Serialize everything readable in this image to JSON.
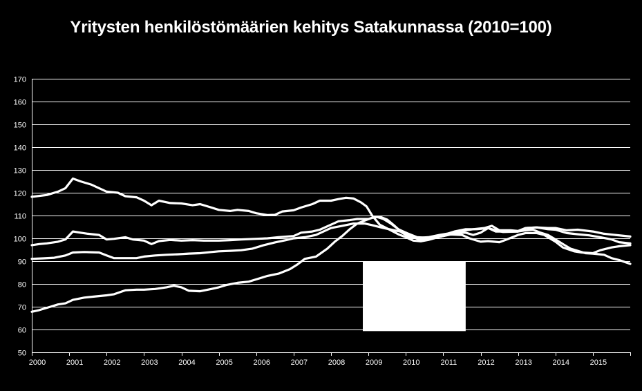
{
  "chart_data": {
    "type": "line",
    "title": "Yritysten henkilöstömäärien kehitys Satakunnassa (2010=100)",
    "xlabel": "",
    "ylabel": "",
    "ylim": [
      50,
      170
    ],
    "ytick_step": 10,
    "xlim": [
      2000,
      2016
    ],
    "x_tick_labels": [
      "2000",
      "2001",
      "2002",
      "2003",
      "2004",
      "2005",
      "2006",
      "2007",
      "2008",
      "2009",
      "2010",
      "2011",
      "2012",
      "2013",
      "2014",
      "2015"
    ],
    "grid": true,
    "legend": "none",
    "line_color": "#ffffff",
    "background": "#000000",
    "overlay_box": {
      "x_range": [
        2008.85,
        2011.6
      ],
      "y_range": [
        59.3,
        90
      ]
    },
    "series": [
      {
        "points": [
          [
            2000,
            118.2
          ],
          [
            2000.4,
            119
          ],
          [
            2000.7,
            120.5
          ],
          [
            2000.9,
            122
          ],
          [
            2001.1,
            126.2
          ],
          [
            2001.3,
            125
          ],
          [
            2001.6,
            123.5
          ],
          [
            2001.8,
            122
          ],
          [
            2002,
            120.5
          ],
          [
            2002.3,
            120
          ],
          [
            2002.5,
            118.5
          ],
          [
            2002.8,
            118
          ],
          [
            2003,
            116.5
          ],
          [
            2003.2,
            114.5
          ],
          [
            2003.4,
            116.5
          ],
          [
            2003.7,
            115.5
          ],
          [
            2004,
            115.3
          ],
          [
            2004.3,
            114.5
          ],
          [
            2004.5,
            115
          ],
          [
            2004.8,
            113.5
          ],
          [
            2005,
            112.5
          ],
          [
            2005.3,
            112
          ],
          [
            2005.5,
            112.5
          ],
          [
            2005.8,
            112
          ],
          [
            2006,
            111
          ],
          [
            2006.3,
            110.2
          ],
          [
            2006.5,
            110.3
          ],
          [
            2006.7,
            111.8
          ],
          [
            2007,
            112.3
          ],
          [
            2007.2,
            113.5
          ],
          [
            2007.5,
            115
          ],
          [
            2007.7,
            116.5
          ],
          [
            2008,
            116.5
          ],
          [
            2008.2,
            117.2
          ],
          [
            2008.4,
            117.8
          ],
          [
            2008.6,
            117.5
          ],
          [
            2008.8,
            115.8
          ],
          [
            2008.95,
            114
          ],
          [
            2009.1,
            110
          ],
          [
            2009.3,
            106
          ],
          [
            2009.6,
            103.5
          ],
          [
            2009.8,
            101.8
          ],
          [
            2010,
            100.5
          ],
          [
            2010.2,
            99
          ],
          [
            2010.4,
            98.7
          ],
          [
            2010.6,
            99.3
          ],
          [
            2010.8,
            100.2
          ],
          [
            2011,
            101
          ],
          [
            2011.2,
            101.7
          ],
          [
            2011.5,
            101.5
          ],
          [
            2011.7,
            100
          ],
          [
            2012,
            98.5
          ],
          [
            2012.2,
            98.8
          ],
          [
            2012.5,
            98.3
          ],
          [
            2012.7,
            99.5
          ],
          [
            2013,
            101.5
          ],
          [
            2013.2,
            102.3
          ],
          [
            2013.5,
            102.3
          ],
          [
            2013.7,
            101.5
          ],
          [
            2014,
            98.5
          ],
          [
            2014.2,
            96
          ],
          [
            2014.5,
            94.3
          ],
          [
            2014.7,
            93.8
          ],
          [
            2015,
            93.5
          ],
          [
            2015.2,
            94.8
          ],
          [
            2015.5,
            96
          ],
          [
            2015.7,
            96.5
          ],
          [
            2016,
            97
          ]
        ]
      },
      {
        "points": [
          [
            2000,
            97
          ],
          [
            2000.2,
            97.5
          ],
          [
            2000.4,
            97.8
          ],
          [
            2000.7,
            98.5
          ],
          [
            2000.9,
            99.5
          ],
          [
            2001.1,
            103
          ],
          [
            2001.3,
            102.5
          ],
          [
            2001.5,
            102
          ],
          [
            2001.8,
            101.5
          ],
          [
            2002,
            99.5
          ],
          [
            2002.2,
            99.8
          ],
          [
            2002.5,
            100.5
          ],
          [
            2002.7,
            99.5
          ],
          [
            2003,
            99
          ],
          [
            2003.2,
            97.5
          ],
          [
            2003.4,
            98.8
          ],
          [
            2003.7,
            99.3
          ],
          [
            2004,
            99
          ],
          [
            2004.3,
            99.2
          ],
          [
            2004.6,
            99
          ],
          [
            2005,
            99
          ],
          [
            2005.3,
            99.2
          ],
          [
            2005.6,
            99.5
          ],
          [
            2006,
            99.8
          ],
          [
            2006.3,
            100
          ],
          [
            2006.6,
            100.5
          ],
          [
            2007,
            101
          ],
          [
            2007.2,
            102.5
          ],
          [
            2007.5,
            103
          ],
          [
            2007.7,
            103.8
          ],
          [
            2008,
            106
          ],
          [
            2008.2,
            107.5
          ],
          [
            2008.5,
            108
          ],
          [
            2008.7,
            108.5
          ],
          [
            2009,
            108.5
          ],
          [
            2009.2,
            109.5
          ],
          [
            2009.4,
            108.5
          ],
          [
            2009.6,
            106.5
          ],
          [
            2009.8,
            104
          ],
          [
            2010,
            102.5
          ],
          [
            2010.2,
            100.5
          ],
          [
            2010.4,
            99.2
          ],
          [
            2010.6,
            100
          ],
          [
            2010.8,
            100.5
          ],
          [
            2011,
            101
          ],
          [
            2011.2,
            102
          ],
          [
            2011.4,
            102.3
          ],
          [
            2011.6,
            102.5
          ],
          [
            2011.8,
            101.5
          ],
          [
            2012,
            102.5
          ],
          [
            2012.2,
            104.5
          ],
          [
            2012.4,
            103.5
          ],
          [
            2012.6,
            102.8
          ],
          [
            2013,
            103
          ],
          [
            2013.2,
            103.5
          ],
          [
            2013.4,
            103.8
          ],
          [
            2013.6,
            102.5
          ],
          [
            2013.8,
            101.5
          ],
          [
            2014,
            99.5
          ],
          [
            2014.2,
            97.5
          ],
          [
            2014.4,
            95.5
          ],
          [
            2014.6,
            94.5
          ],
          [
            2014.8,
            93.5
          ],
          [
            2015,
            93.3
          ],
          [
            2015.3,
            92.8
          ],
          [
            2015.5,
            91.3
          ],
          [
            2015.7,
            90.5
          ],
          [
            2016,
            88.8
          ]
        ]
      },
      {
        "points": [
          [
            2000,
            91
          ],
          [
            2000.3,
            91.2
          ],
          [
            2000.6,
            91.5
          ],
          [
            2000.9,
            92.5
          ],
          [
            2001.1,
            93.8
          ],
          [
            2001.4,
            94
          ],
          [
            2001.8,
            93.8
          ],
          [
            2002,
            92.5
          ],
          [
            2002.2,
            91.3
          ],
          [
            2002.5,
            91.3
          ],
          [
            2002.8,
            91.3
          ],
          [
            2003,
            92
          ],
          [
            2003.3,
            92.5
          ],
          [
            2003.6,
            92.8
          ],
          [
            2003.9,
            93
          ],
          [
            2004.2,
            93.3
          ],
          [
            2004.5,
            93.5
          ],
          [
            2004.8,
            94
          ],
          [
            2005,
            94.3
          ],
          [
            2005.3,
            94.5
          ],
          [
            2005.6,
            94.8
          ],
          [
            2005.9,
            95.5
          ],
          [
            2006.2,
            97
          ],
          [
            2006.5,
            98.2
          ],
          [
            2006.8,
            99.2
          ],
          [
            2007,
            100
          ],
          [
            2007.3,
            100.5
          ],
          [
            2007.6,
            101.5
          ],
          [
            2008,
            104.5
          ],
          [
            2008.3,
            105.5
          ],
          [
            2008.6,
            106.5
          ],
          [
            2008.9,
            106.5
          ],
          [
            2009.1,
            105.8
          ],
          [
            2009.4,
            104.5
          ],
          [
            2009.7,
            103.5
          ],
          [
            2010,
            102.5
          ],
          [
            2010.3,
            100.5
          ],
          [
            2010.6,
            100.2
          ],
          [
            2011,
            101.5
          ],
          [
            2011.3,
            103
          ],
          [
            2011.6,
            104
          ],
          [
            2011.9,
            104
          ],
          [
            2012.2,
            104.5
          ],
          [
            2012.4,
            103
          ],
          [
            2012.7,
            103
          ],
          [
            2013,
            103
          ],
          [
            2013.2,
            104.5
          ],
          [
            2013.5,
            104.8
          ],
          [
            2013.8,
            104.5
          ],
          [
            2014,
            104.5
          ],
          [
            2014.3,
            103.5
          ],
          [
            2014.6,
            103.8
          ],
          [
            2015,
            103
          ],
          [
            2015.3,
            102
          ],
          [
            2015.6,
            101.5
          ],
          [
            2016,
            100.8
          ]
        ]
      },
      {
        "points": [
          [
            2000,
            67.8
          ],
          [
            2000.2,
            68.5
          ],
          [
            2000.5,
            70
          ],
          [
            2000.7,
            71
          ],
          [
            2000.9,
            71.5
          ],
          [
            2001.1,
            73
          ],
          [
            2001.4,
            74
          ],
          [
            2001.7,
            74.5
          ],
          [
            2002,
            75
          ],
          [
            2002.2,
            75.5
          ],
          [
            2002.5,
            77.2
          ],
          [
            2002.8,
            77.5
          ],
          [
            2003,
            77.5
          ],
          [
            2003.3,
            77.8
          ],
          [
            2003.6,
            78.5
          ],
          [
            2003.8,
            79.2
          ],
          [
            2004,
            78.5
          ],
          [
            2004.2,
            77
          ],
          [
            2004.5,
            76.8
          ],
          [
            2004.8,
            77.8
          ],
          [
            2005,
            78.5
          ],
          [
            2005.2,
            79.5
          ],
          [
            2005.5,
            80.5
          ],
          [
            2005.8,
            81
          ],
          [
            2006,
            82
          ],
          [
            2006.3,
            83.5
          ],
          [
            2006.6,
            84.5
          ],
          [
            2006.9,
            86.5
          ],
          [
            2007.1,
            88.5
          ],
          [
            2007.3,
            91
          ],
          [
            2007.6,
            92
          ],
          [
            2007.9,
            95.5
          ],
          [
            2008.1,
            98.5
          ],
          [
            2008.3,
            101
          ],
          [
            2008.5,
            104
          ],
          [
            2008.7,
            106.5
          ],
          [
            2008.9,
            107.8
          ],
          [
            2009.1,
            109
          ],
          [
            2009.3,
            109.5
          ],
          [
            2009.5,
            108.2
          ],
          [
            2009.7,
            105.5
          ],
          [
            2009.9,
            102.5
          ],
          [
            2010.1,
            100.5
          ],
          [
            2010.3,
            100.2
          ],
          [
            2010.6,
            100.5
          ],
          [
            2010.9,
            101.5
          ],
          [
            2011.2,
            102.3
          ],
          [
            2011.4,
            102.5
          ],
          [
            2011.6,
            103.5
          ],
          [
            2011.8,
            104
          ],
          [
            2012.1,
            104.5
          ],
          [
            2012.3,
            105.5
          ],
          [
            2012.5,
            103.5
          ],
          [
            2012.8,
            103.5
          ],
          [
            2013,
            103.2
          ],
          [
            2013.2,
            104.5
          ],
          [
            2013.5,
            104.8
          ],
          [
            2013.8,
            104
          ],
          [
            2014,
            103.8
          ],
          [
            2014.3,
            102.3
          ],
          [
            2014.6,
            101.8
          ],
          [
            2014.9,
            101.3
          ],
          [
            2015.2,
            100.5
          ],
          [
            2015.5,
            99.5
          ],
          [
            2015.7,
            98.3
          ],
          [
            2016,
            97.8
          ]
        ]
      }
    ]
  }
}
